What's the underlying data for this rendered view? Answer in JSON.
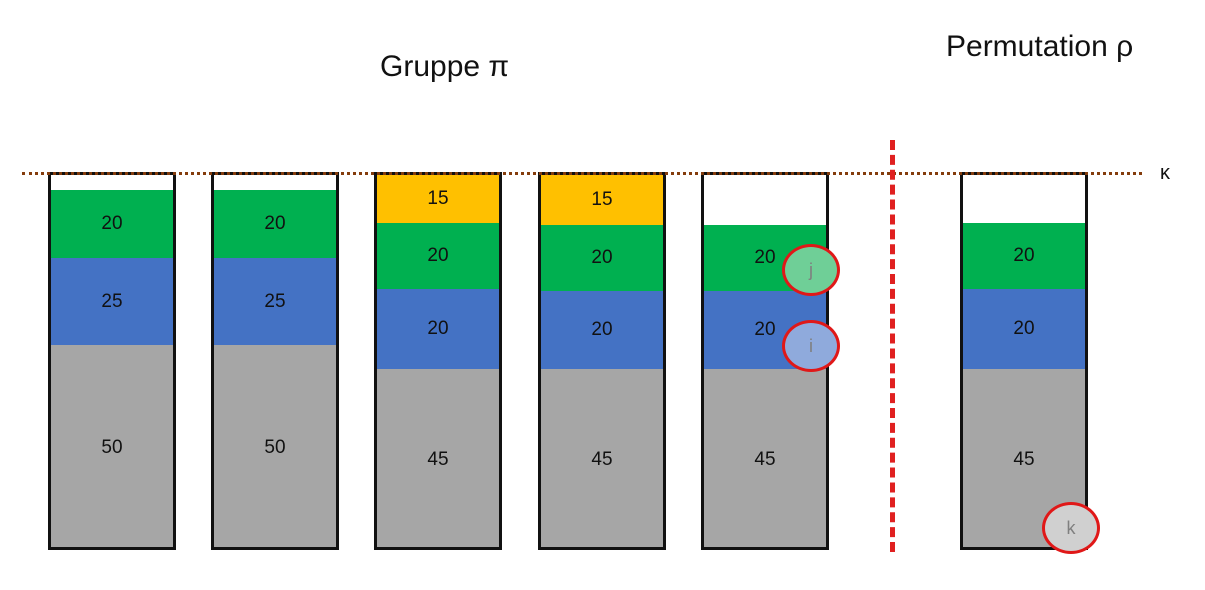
{
  "titles": {
    "group": "Gruppe π",
    "permutation": "Permutation ρ",
    "capacity": "κ"
  },
  "columns": [
    {
      "label_gray": "50",
      "label_blue": "25",
      "label_green": "20"
    },
    {
      "label_gray": "50",
      "label_blue": "25",
      "label_green": "20"
    },
    {
      "label_gray": "45",
      "label_blue": "20",
      "label_green": "20",
      "label_yellow": "15"
    },
    {
      "label_gray": "45",
      "label_blue": "20",
      "label_green": "20",
      "label_yellow": "15"
    },
    {
      "label_gray": "45",
      "label_blue": "20",
      "label_green": "20"
    }
  ],
  "permutation_column": {
    "label_gray": "45",
    "label_blue": "20",
    "label_green": "20"
  },
  "markers": {
    "j": "j",
    "i": "i",
    "k": "k"
  },
  "colors": {
    "gray": "#a6a6a6",
    "blue": "#4472c4",
    "green": "#00b050",
    "yellow": "#ffc000",
    "separator": "#e02020",
    "kappa_line": "#843c0c",
    "marker_outline": "#e01818"
  }
}
